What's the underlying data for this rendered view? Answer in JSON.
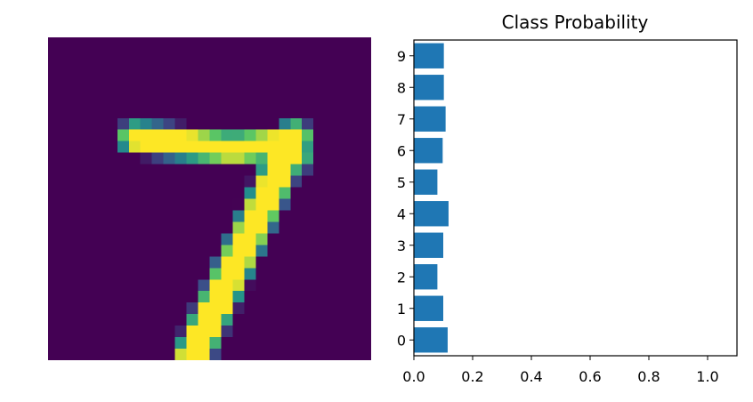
{
  "figure": {
    "image_panel": {
      "kind": "grayscale digit image rendered with viridis colormap",
      "grid_size": 28,
      "colormap_low": "#440154",
      "colormap_high": "#fde725"
    }
  },
  "chart_data": {
    "type": "bar",
    "orientation": "horizontal",
    "title": "Class Probability",
    "xlabel": "",
    "ylabel": "",
    "categories": [
      "0",
      "1",
      "2",
      "3",
      "4",
      "5",
      "6",
      "7",
      "8",
      "9"
    ],
    "values": [
      0.115,
      0.1,
      0.08,
      0.1,
      0.118,
      0.08,
      0.098,
      0.108,
      0.102,
      0.102
    ],
    "xlim": [
      0,
      1.1
    ],
    "xticks": [
      0.0,
      0.2,
      0.4,
      0.6,
      0.8,
      1.0
    ],
    "xtick_labels": [
      "0.0",
      "0.2",
      "0.4",
      "0.6",
      "0.8",
      "1.0"
    ],
    "grid": false,
    "bar_color": "#1f77b4"
  }
}
